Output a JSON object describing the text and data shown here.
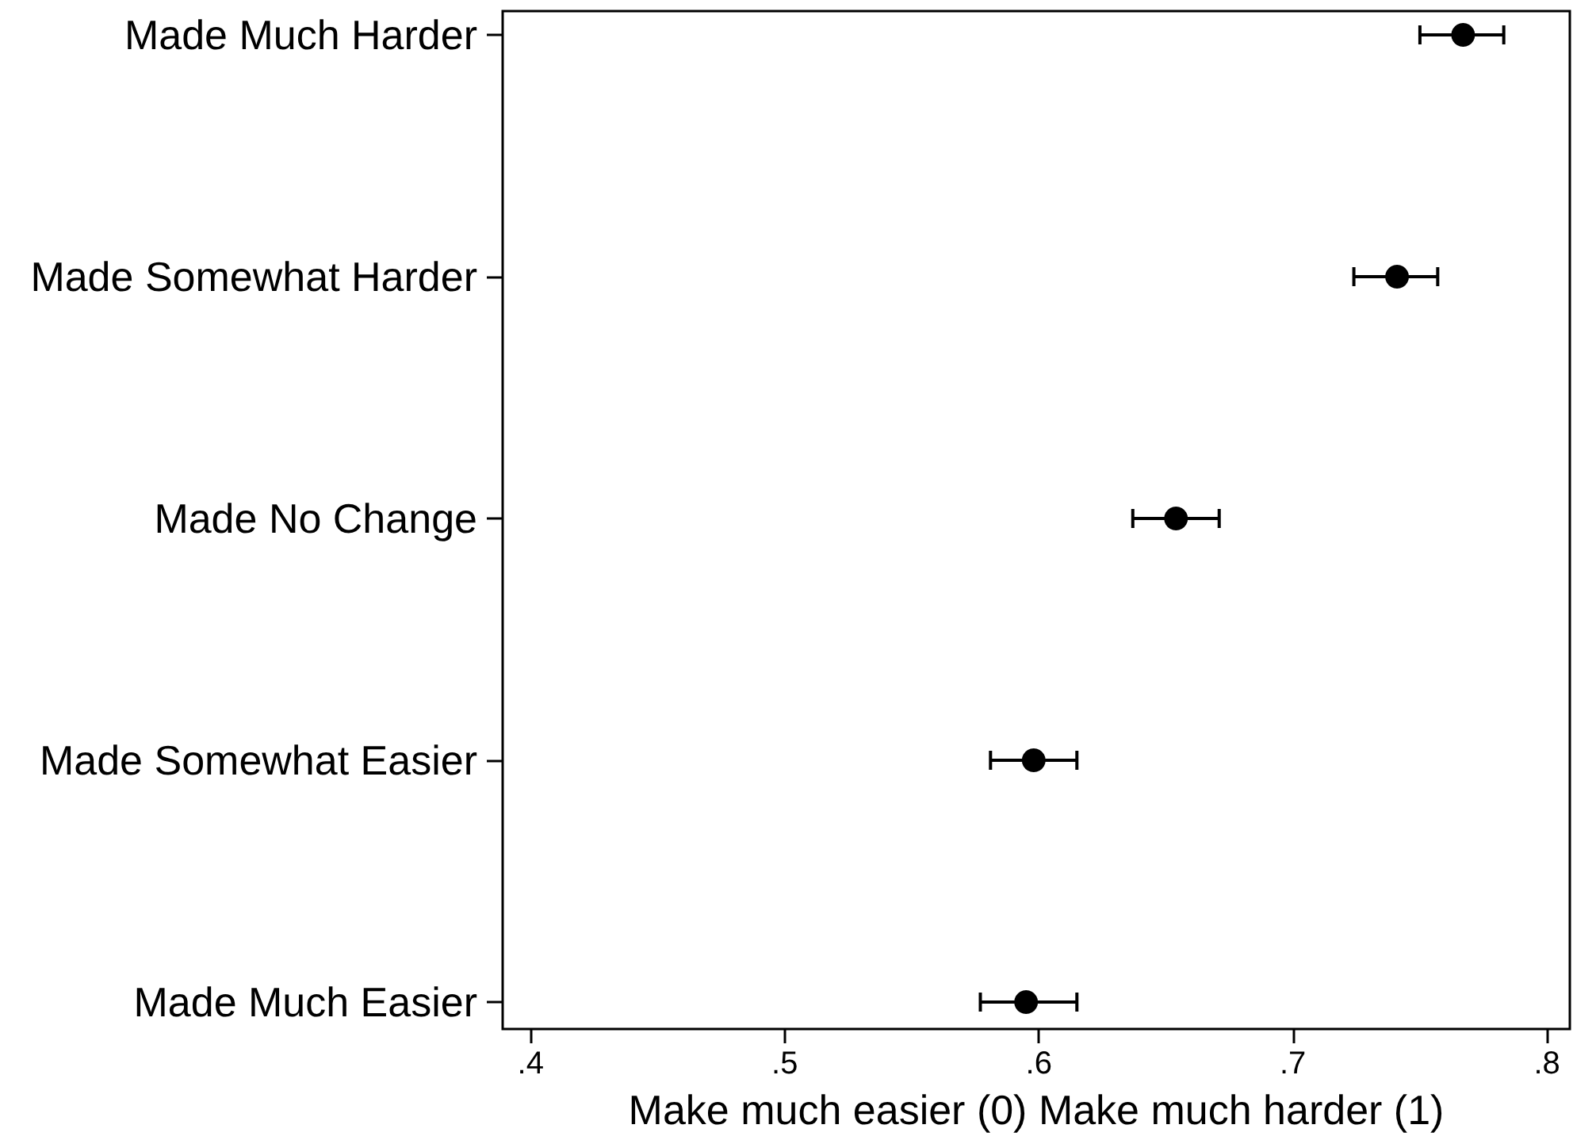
{
  "chart_data": {
    "type": "scatter",
    "orientation": "horizontal",
    "categories": [
      "Made Much Harder",
      "Made Somewhat Harder",
      "Made No Change",
      "Made Somewhat Easier",
      "Made Much Easier"
    ],
    "values": [
      0.767,
      0.741,
      0.654,
      0.598,
      0.595
    ],
    "errors": [
      [
        0.75,
        0.783
      ],
      [
        0.724,
        0.757
      ],
      [
        0.637,
        0.671
      ],
      [
        0.581,
        0.615
      ],
      [
        0.577,
        0.615
      ]
    ],
    "color": "#000000",
    "marker": "circle",
    "xlabel": "Make much easier (0) Make much harder (1)",
    "xlim": [
      0.389,
      0.809
    ],
    "xticks": [
      {
        "value": 0.4,
        "label": ".4"
      },
      {
        "value": 0.5,
        "label": ".5"
      },
      {
        "value": 0.6,
        "label": ".6"
      },
      {
        "value": 0.7,
        "label": ".7"
      },
      {
        "value": 0.8,
        "label": ".8"
      }
    ]
  }
}
